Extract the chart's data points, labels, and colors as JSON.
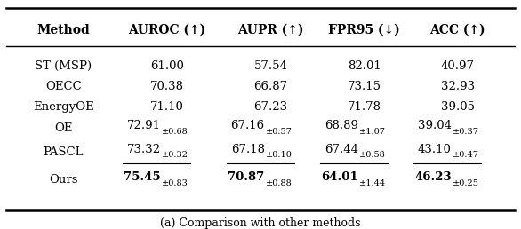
{
  "title": "(a) Comparison with other methods",
  "columns": [
    "Method",
    "AUROC (↑)",
    "AUPR (↑)",
    "FPR95 (↓)",
    "ACC (↑)"
  ],
  "rows": [
    {
      "method": "ST (MSP)",
      "auroc": "61.00",
      "aupr": "57.54",
      "fpr95": "82.01",
      "acc": "40.97",
      "bold": false,
      "underline": false,
      "has_std": false
    },
    {
      "method": "OECC",
      "auroc": "70.38",
      "aupr": "66.87",
      "fpr95": "73.15",
      "acc": "32.93",
      "bold": false,
      "underline": false,
      "has_std": false
    },
    {
      "method": "EnergyOE",
      "auroc": "71.10",
      "aupr": "67.23",
      "fpr95": "71.78",
      "acc": "39.05",
      "bold": false,
      "underline": false,
      "has_std": false
    },
    {
      "method": "OE",
      "auroc": "72.91",
      "aupr": "67.16",
      "fpr95": "68.89",
      "acc": "39.04",
      "auroc_std": "±0.68",
      "aupr_std": "±0.57",
      "fpr95_std": "±1.07",
      "acc_std": "±0.37",
      "bold": false,
      "underline": false,
      "has_std": true
    },
    {
      "method": "PASCL",
      "auroc": "73.32",
      "aupr": "67.18",
      "fpr95": "67.44",
      "acc": "43.10",
      "auroc_std": "±0.32",
      "aupr_std": "±0.10",
      "fpr95_std": "±0.58",
      "acc_std": "±0.47",
      "bold": false,
      "underline": true,
      "has_std": true
    },
    {
      "method": "Ours",
      "auroc": "75.45",
      "aupr": "70.87",
      "fpr95": "64.01",
      "acc": "46.23",
      "auroc_std": "±0.83",
      "aupr_std": "±0.88",
      "fpr95_std": "±1.44",
      "acc_std": "±0.25",
      "bold": true,
      "underline": false,
      "has_std": true
    }
  ],
  "background_color": "#ffffff",
  "header_color": "#000000",
  "text_color": "#000000"
}
